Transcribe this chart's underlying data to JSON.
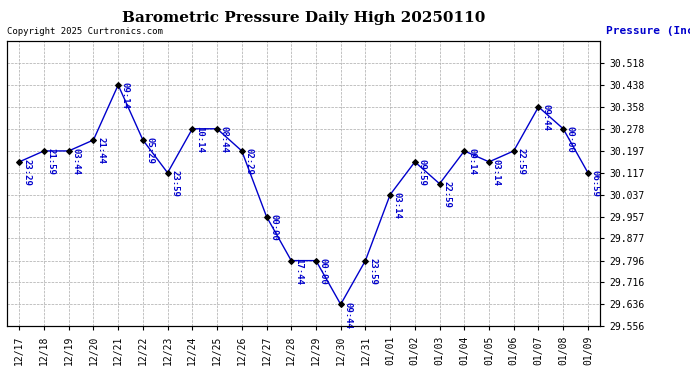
{
  "title": "Barometric Pressure Daily High 20250110",
  "ylabel": "Pressure (Inches/Hg)",
  "copyright": "Copyright 2025 Curtronics.com",
  "x_labels": [
    "12/17",
    "12/18",
    "12/19",
    "12/20",
    "12/21",
    "12/22",
    "12/23",
    "12/24",
    "12/25",
    "12/26",
    "12/27",
    "12/28",
    "12/29",
    "12/30",
    "12/31",
    "01/01",
    "01/02",
    "01/03",
    "01/04",
    "01/05",
    "01/06",
    "01/07",
    "01/08",
    "01/09"
  ],
  "y_values": [
    30.157,
    30.197,
    30.197,
    30.237,
    30.438,
    30.237,
    30.117,
    30.278,
    30.278,
    30.197,
    29.957,
    29.796,
    29.796,
    29.636,
    29.796,
    30.037,
    30.157,
    30.077,
    30.197,
    30.157,
    30.197,
    30.358,
    30.278,
    30.117
  ],
  "annotations": [
    "23:29",
    "21:59",
    "03:44",
    "21:44",
    "09:14",
    "05:29",
    "23:59",
    "10:14",
    "08:44",
    "02:29",
    "00:00",
    "17:44",
    "00:00",
    "09:44",
    "23:59",
    "03:14",
    "09:59",
    "22:59",
    "09:14",
    "03:14",
    "22:59",
    "09:44",
    "00:00",
    "06:59"
  ],
  "line_color": "#0000cc",
  "marker_color": "#000000",
  "annotation_color": "#0000cc",
  "background_color": "#ffffff",
  "grid_color": "#aaaaaa",
  "title_color": "#000000",
  "ylabel_color": "#0000cc",
  "copyright_color": "#000000",
  "ylim_min": 29.556,
  "ylim_max": 30.598,
  "ytick_values": [
    29.556,
    29.636,
    29.716,
    29.796,
    29.877,
    29.957,
    30.037,
    30.117,
    30.197,
    30.278,
    30.358,
    30.438,
    30.518
  ],
  "title_fontsize": 11,
  "annotation_fontsize": 6.5,
  "ylabel_fontsize": 8,
  "tick_fontsize": 7,
  "copyright_fontsize": 6.5,
  "figwidth": 6.9,
  "figheight": 3.75,
  "dpi": 100
}
